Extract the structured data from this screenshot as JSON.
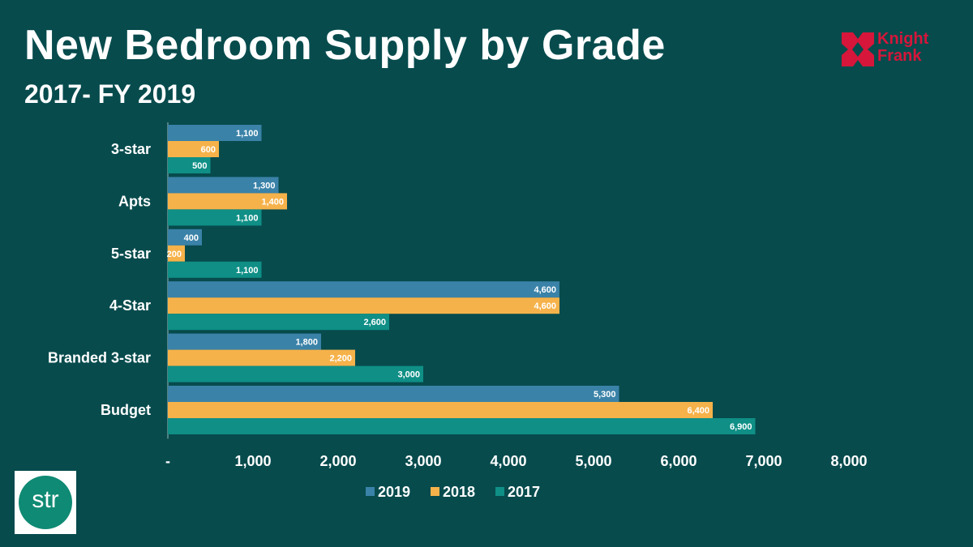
{
  "header": {
    "title": "New Bedroom Supply by Grade",
    "subtitle": "2017- FY 2019"
  },
  "logos": {
    "knight_frank_line1": "Knight",
    "knight_frank_line2": "Frank",
    "str": "str"
  },
  "colors": {
    "background": "#074b4d",
    "series_2019": "#3a82a8",
    "series_2018": "#f6b24a",
    "series_2017": "#0f8f86",
    "knight_frank_red": "#d6163a"
  },
  "chart_data": {
    "type": "bar",
    "orientation": "horizontal",
    "title": "New Bedroom Supply by Grade",
    "subtitle": "2017- FY 2019",
    "categories": [
      "3-star",
      "Apts",
      "5-star",
      "4-Star",
      "Branded 3-star",
      "Budget"
    ],
    "series": [
      {
        "name": "2019",
        "color": "#3a82a8",
        "values": [
          1100,
          1300,
          400,
          4600,
          1800,
          5300
        ],
        "labels": [
          "1,100",
          "1,300",
          "400",
          "4,600",
          "1,800",
          "5,300"
        ]
      },
      {
        "name": "2018",
        "color": "#f6b24a",
        "values": [
          600,
          1400,
          200,
          4600,
          2200,
          6400
        ],
        "labels": [
          "600",
          "1,400",
          "200",
          "4,600",
          "2,200",
          "6,400"
        ]
      },
      {
        "name": "2017",
        "color": "#0f8f86",
        "values": [
          500,
          1100,
          1100,
          2600,
          3000,
          6900
        ],
        "labels": [
          "500",
          "1,100",
          "1,100",
          "2,600",
          "3,000",
          "6,900"
        ]
      }
    ],
    "xlim": [
      0,
      8000
    ],
    "ticks": [
      0,
      1000,
      2000,
      3000,
      4000,
      5000,
      6000,
      7000,
      8000
    ],
    "tick_labels": [
      "-",
      "1,000",
      "2,000",
      "3,000",
      "4,000",
      "5,000",
      "6,000",
      "7,000",
      "8,000"
    ],
    "grid": false,
    "legend_position": "bottom"
  }
}
